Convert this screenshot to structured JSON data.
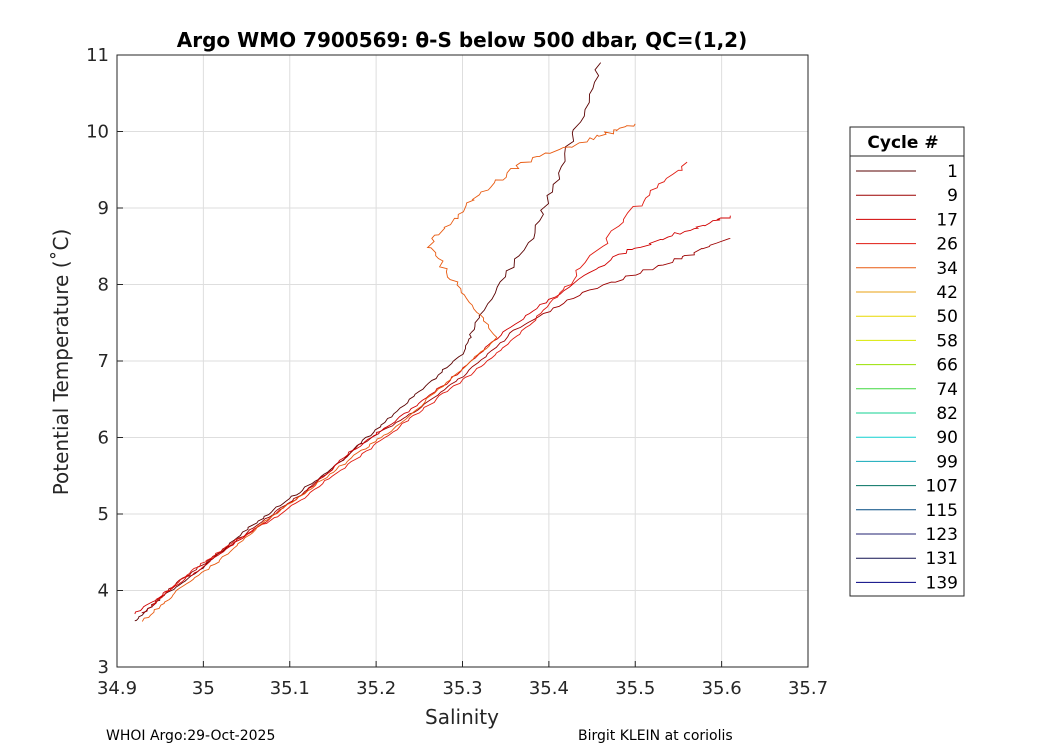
{
  "chart_data": {
    "type": "line",
    "title": "Argo WMO 7900569: θ-S below 500 dbar,  QC=(1,2)",
    "xlabel": "Salinity",
    "ylabel": "Potential Temperature (˚C)",
    "xlim": [
      34.9,
      35.7
    ],
    "ylim": [
      3,
      11
    ],
    "xticks": [
      "34.9",
      "35",
      "35.1",
      "35.2",
      "35.3",
      "35.4",
      "35.5",
      "35.6",
      "35.7"
    ],
    "yticks": [
      "3",
      "4",
      "5",
      "6",
      "7",
      "8",
      "9",
      "10",
      "11"
    ],
    "grid": true,
    "legend": {
      "title": "Cycle #",
      "placement": "right",
      "entries": [
        {
          "label": "1",
          "color": "#5a0000"
        },
        {
          "label": "9",
          "color": "#9c0000"
        },
        {
          "label": "17",
          "color": "#d00000"
        },
        {
          "label": "26",
          "color": "#e01a10"
        },
        {
          "label": "34",
          "color": "#e85a10"
        },
        {
          "label": "42",
          "color": "#e8a010"
        },
        {
          "label": "50",
          "color": "#e8d800"
        },
        {
          "label": "58",
          "color": "#d8e800"
        },
        {
          "label": "66",
          "color": "#98e000"
        },
        {
          "label": "74",
          "color": "#40d840"
        },
        {
          "label": "82",
          "color": "#10d090"
        },
        {
          "label": "90",
          "color": "#10d0d0"
        },
        {
          "label": "99",
          "color": "#10a8b8"
        },
        {
          "label": "107",
          "color": "#007060"
        },
        {
          "label": "115",
          "color": "#004880"
        },
        {
          "label": "123",
          "color": "#202070"
        },
        {
          "label": "131",
          "color": "#101050"
        },
        {
          "label": "139",
          "color": "#000080"
        }
      ]
    },
    "series": [
      {
        "name": "1",
        "color": "#5a0000",
        "x": [
          34.92,
          34.95,
          35.0,
          35.05,
          35.1,
          35.15,
          35.2,
          35.25,
          35.3,
          35.32,
          35.38,
          35.42,
          35.46
        ],
        "y": [
          3.6,
          3.9,
          4.3,
          4.8,
          5.2,
          5.6,
          6.1,
          6.6,
          7.1,
          7.6,
          8.6,
          9.7,
          10.9
        ]
      },
      {
        "name": "9",
        "color": "#9c0000",
        "x": [
          34.93,
          34.97,
          35.02,
          35.08,
          35.13,
          35.18,
          35.24,
          35.3,
          35.36,
          35.44,
          35.54,
          35.61
        ],
        "y": [
          3.7,
          4.1,
          4.5,
          5.0,
          5.4,
          5.9,
          6.3,
          6.8,
          7.4,
          7.9,
          8.3,
          8.6
        ]
      },
      {
        "name": "17",
        "color": "#d00000",
        "x": [
          34.92,
          34.96,
          35.01,
          35.06,
          35.12,
          35.17,
          35.22,
          35.28,
          35.34,
          35.4,
          35.48,
          35.56,
          35.61
        ],
        "y": [
          3.7,
          4.0,
          4.4,
          4.8,
          5.3,
          5.8,
          6.2,
          6.7,
          7.3,
          7.8,
          8.4,
          8.7,
          8.9
        ]
      },
      {
        "name": "26",
        "color": "#e01a10",
        "x": [
          34.94,
          34.98,
          35.03,
          35.09,
          35.15,
          35.21,
          35.27,
          35.33,
          35.38,
          35.43,
          35.5,
          35.56
        ],
        "y": [
          3.8,
          4.2,
          4.6,
          5.0,
          5.5,
          6.0,
          6.5,
          7.0,
          7.5,
          8.1,
          9.0,
          9.6
        ]
      },
      {
        "name": "34",
        "color": "#e85a10",
        "x": [
          34.93,
          34.97,
          35.02,
          35.07,
          35.12,
          35.18,
          35.23,
          35.29,
          35.34,
          35.3,
          35.26,
          35.31,
          35.37,
          35.45,
          35.5
        ],
        "y": [
          3.6,
          4.0,
          4.4,
          4.9,
          5.3,
          5.8,
          6.2,
          6.8,
          7.3,
          7.9,
          8.5,
          9.1,
          9.6,
          9.9,
          10.1
        ]
      }
    ]
  },
  "footer": {
    "left": "WHOI Argo:29-Oct-2025",
    "right": "Birgit KLEIN at coriolis"
  }
}
